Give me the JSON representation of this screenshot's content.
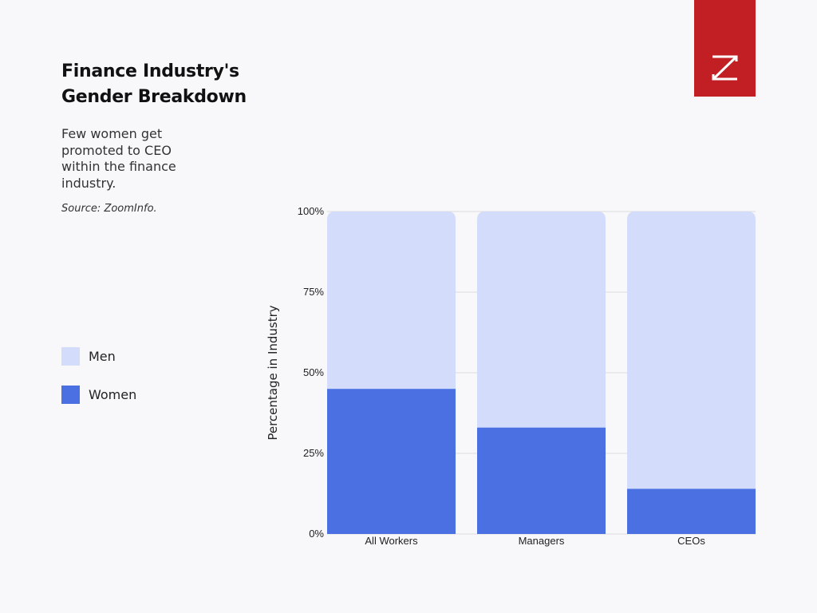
{
  "header": {
    "title": "Finance Industry's Gender Breakdown",
    "subtitle": "Few women get promoted to CEO within the finance industry.",
    "source": "Source: ZoomInfo."
  },
  "legend": {
    "items": [
      {
        "label": "Men",
        "color": "#d3ddfb"
      },
      {
        "label": "Women",
        "color": "#4a70e2"
      }
    ]
  },
  "logo": {
    "icon": "zoominfo-z-logo",
    "color": "#c21f24"
  },
  "chart_data": {
    "type": "bar",
    "stacked": true,
    "categories": [
      "All Workers",
      "Managers",
      "CEOs"
    ],
    "series": [
      {
        "name": "Women",
        "values": [
          45,
          33,
          14
        ],
        "color": "#4a70e2"
      },
      {
        "name": "Men",
        "values": [
          55,
          67,
          86
        ],
        "color": "#d3ddfb"
      }
    ],
    "ylabel": "Percentage in Industry",
    "ylim": [
      0,
      100
    ],
    "yticks": [
      0,
      25,
      50,
      75,
      100
    ],
    "ytick_labels": [
      "0%",
      "25%",
      "50%",
      "75%",
      "100%"
    ],
    "grid": true,
    "legend_position": "left"
  }
}
